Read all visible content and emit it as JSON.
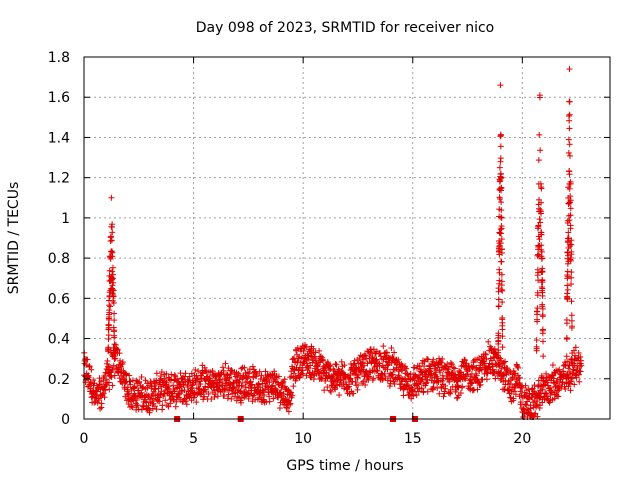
{
  "chart_data": {
    "type": "scatter",
    "title": "Day 098 of 2023, SRMTID for receiver nico",
    "xlabel": "GPS time / hours",
    "ylabel": "SRMTID / TECUs",
    "xlim": [
      0,
      24
    ],
    "ylim": [
      0,
      1.8
    ],
    "grid": true,
    "marker": "+",
    "color": "#e00000",
    "x_ticks": [
      {
        "value": 0,
        "label": "0"
      },
      {
        "value": 5,
        "label": "5"
      },
      {
        "value": 10,
        "label": "10"
      },
      {
        "value": 15,
        "label": "15"
      },
      {
        "value": 20,
        "label": "20"
      }
    ],
    "y_ticks": [
      {
        "value": 0,
        "label": "0"
      },
      {
        "value": 0.2,
        "label": "0.2"
      },
      {
        "value": 0.4,
        "label": "0.4"
      },
      {
        "value": 0.6,
        "label": "0.6"
      },
      {
        "value": 0.8,
        "label": "0.8"
      },
      {
        "value": 1.0,
        "label": "1"
      },
      {
        "value": 1.2,
        "label": "1.2"
      },
      {
        "value": 1.4,
        "label": "1.4"
      },
      {
        "value": 1.6,
        "label": "1.6"
      },
      {
        "value": 1.8,
        "label": "1.8"
      }
    ],
    "series": [
      {
        "name": "SRMTID",
        "baseline": [
          [
            0.0,
            0.25
          ],
          [
            0.3,
            0.2
          ],
          [
            0.5,
            0.1
          ],
          [
            0.8,
            0.12
          ],
          [
            1.0,
            0.2
          ],
          [
            1.5,
            0.3
          ],
          [
            2.0,
            0.14
          ],
          [
            2.5,
            0.12
          ],
          [
            3.0,
            0.12
          ],
          [
            3.5,
            0.14
          ],
          [
            4.0,
            0.15
          ],
          [
            4.5,
            0.16
          ],
          [
            5.0,
            0.16
          ],
          [
            5.5,
            0.18
          ],
          [
            6.0,
            0.17
          ],
          [
            6.5,
            0.19
          ],
          [
            7.0,
            0.17
          ],
          [
            7.5,
            0.18
          ],
          [
            8.0,
            0.16
          ],
          [
            8.5,
            0.17
          ],
          [
            9.0,
            0.15
          ],
          [
            9.3,
            0.1
          ],
          [
            9.6,
            0.25
          ],
          [
            10.0,
            0.3
          ],
          [
            10.5,
            0.28
          ],
          [
            11.0,
            0.22
          ],
          [
            11.5,
            0.2
          ],
          [
            12.0,
            0.2
          ],
          [
            12.5,
            0.22
          ],
          [
            13.0,
            0.26
          ],
          [
            13.5,
            0.28
          ],
          [
            14.0,
            0.26
          ],
          [
            14.5,
            0.2
          ],
          [
            15.0,
            0.18
          ],
          [
            15.5,
            0.2
          ],
          [
            16.0,
            0.24
          ],
          [
            16.5,
            0.2
          ],
          [
            17.0,
            0.2
          ],
          [
            17.5,
            0.22
          ],
          [
            18.0,
            0.22
          ],
          [
            18.5,
            0.3
          ],
          [
            19.0,
            0.25
          ],
          [
            19.5,
            0.15
          ],
          [
            19.8,
            0.2
          ],
          [
            20.0,
            0.08
          ],
          [
            20.5,
            0.07
          ],
          [
            21.0,
            0.15
          ],
          [
            21.5,
            0.18
          ],
          [
            22.0,
            0.2
          ],
          [
            22.5,
            0.28
          ],
          [
            22.7,
            0.25
          ]
        ],
        "spread": 0.05,
        "bursts": [
          {
            "x": 1.25,
            "width": 0.3,
            "peak": 1.1
          },
          {
            "x": 19.0,
            "width": 0.2,
            "peak": 1.66
          },
          {
            "x": 20.8,
            "width": 0.3,
            "peak": 1.61
          },
          {
            "x": 22.15,
            "width": 0.25,
            "peak": 1.74
          }
        ],
        "gaps": [
          4.25,
          7.15,
          14.1,
          15.1
        ]
      }
    ]
  }
}
